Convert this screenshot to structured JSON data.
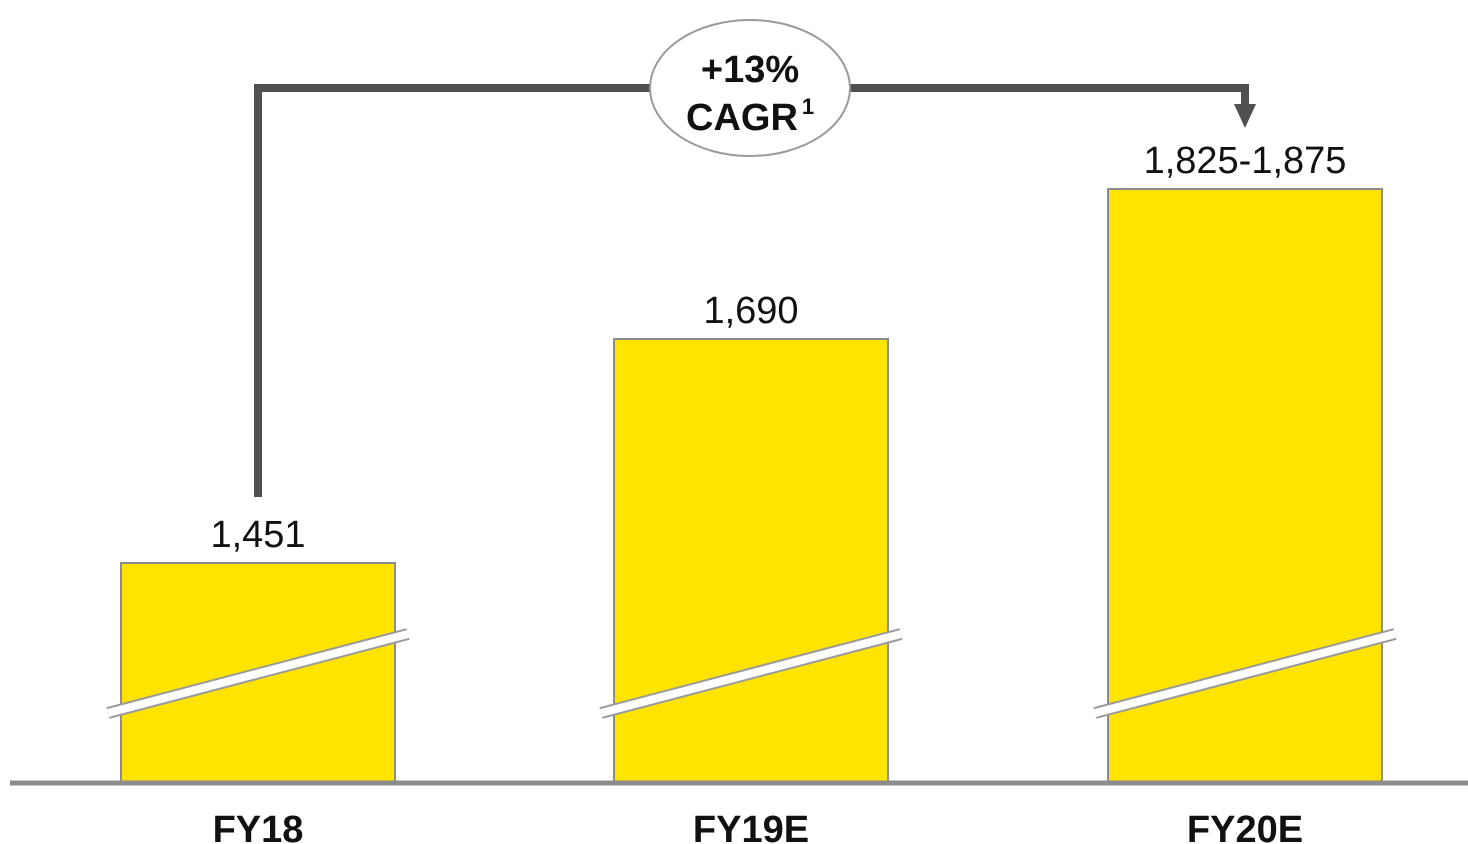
{
  "chart_data": {
    "type": "bar",
    "categories": [
      "FY18",
      "FY19E",
      "FY20E"
    ],
    "values": [
      1451,
      1690,
      1850
    ],
    "value_labels": [
      "1,451",
      "1,690",
      "1,825-1,875"
    ],
    "axis_break": true,
    "grid": false,
    "legend": "none",
    "annotation": {
      "line1": "+13%",
      "line2": "CAGR",
      "superscript": "1",
      "from": "FY18",
      "to": "FY20E"
    }
  },
  "colors": {
    "bar_fill": "#FFE400",
    "bar_stroke": "#8c8c8c",
    "arrow": "#505050",
    "baseline": "#8c8c8c",
    "text": "#111111"
  }
}
